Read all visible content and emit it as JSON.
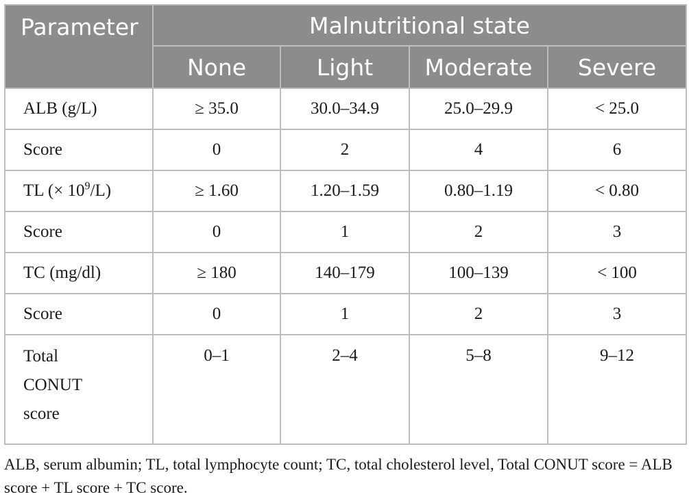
{
  "table": {
    "header": {
      "parameter": "Parameter",
      "group_title": "Malnutritional state",
      "states": [
        "None",
        "Light",
        "Moderate",
        "Severe"
      ]
    },
    "rows": [
      {
        "label": "ALB (g/L)",
        "values": [
          "≥ 35.0",
          "30.0–34.9",
          "25.0–29.9",
          "< 25.0"
        ]
      },
      {
        "label": "Score",
        "values": [
          "0",
          "2",
          "4",
          "6"
        ]
      },
      {
        "label_prefix": "TL (× 10",
        "label_sup": "9",
        "label_suffix": "/L)",
        "values": [
          "≥ 1.60",
          "1.20–1.59",
          "0.80–1.19",
          "< 0.80"
        ]
      },
      {
        "label": "Score",
        "values": [
          "0",
          "1",
          "2",
          "3"
        ]
      },
      {
        "label": "TC (mg/dl)",
        "values": [
          "≥ 180",
          "140–179",
          "100–139",
          "< 100"
        ]
      },
      {
        "label": "Score",
        "values": [
          "0",
          "1",
          "2",
          "3"
        ]
      },
      {
        "label_lines": [
          "Total",
          "CONUT",
          "score"
        ],
        "values": [
          "0–1",
          "2–4",
          "5–8",
          "9–12"
        ]
      }
    ]
  },
  "footnote": "ALB, serum albumin; TL, total lymphocyte count; TC, total cholesterol level, Total CONUT score = ALB score + TL score + TC score."
}
